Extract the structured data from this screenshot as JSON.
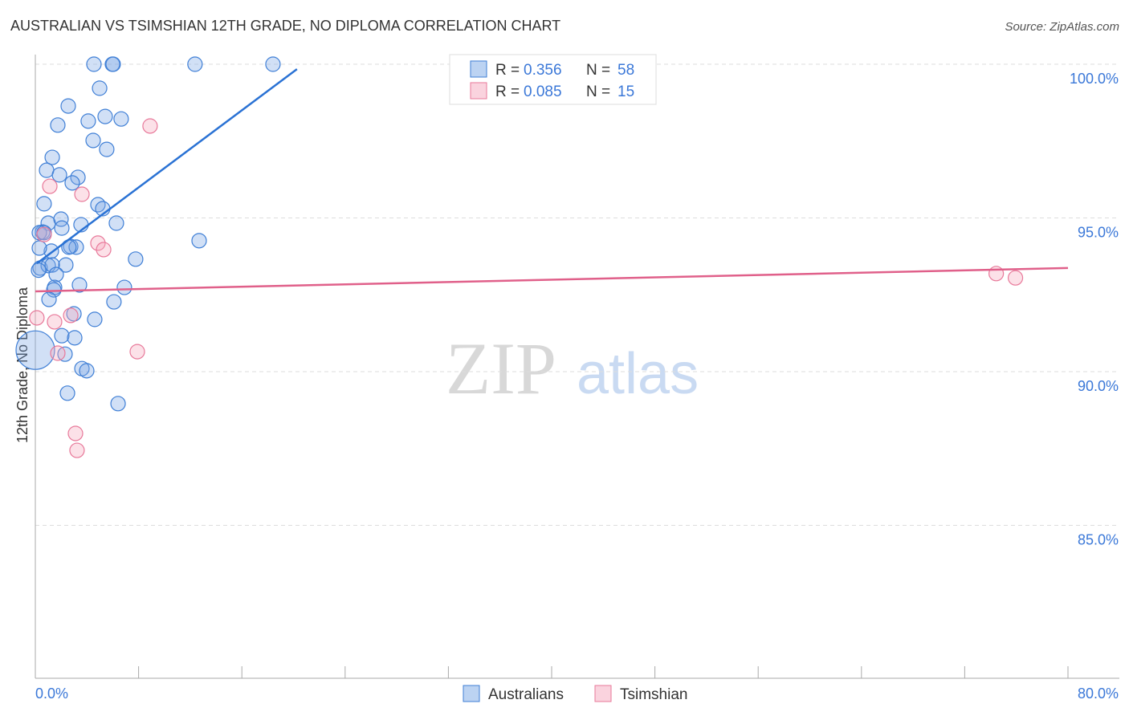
{
  "chart_data": {
    "type": "scatter",
    "title": "AUSTRALIAN VS TSIMSHIAN 12TH GRADE, NO DIPLOMA CORRELATION CHART",
    "source": "Source: ZipAtlas.com",
    "xlabel": "",
    "ylabel": "12th Grade, No Diploma",
    "xlim": [
      0,
      80
    ],
    "ylim": [
      80,
      100.9
    ],
    "x_tick_labels": [
      "0.0%",
      "80.0%"
    ],
    "y_ticks": [
      100,
      95,
      90,
      85
    ],
    "y_tick_labels": [
      "100.0%",
      "95.0%",
      "90.0%",
      "85.0%"
    ],
    "watermark": "ZIPatlas",
    "legend": {
      "placement": "top-center",
      "entries": [
        {
          "r_label": "R =",
          "r": "0.356",
          "n_label": "N =",
          "n": "58"
        },
        {
          "r_label": "R =",
          "r": "0.085",
          "n_label": "N =",
          "n": "15"
        }
      ]
    },
    "series": [
      {
        "name": "Australians",
        "color": "#7aa7e6",
        "stroke": "#3f7fd6",
        "trend": {
          "x": [
            0.12,
            20.27
          ],
          "y": [
            93.52,
            99.84
          ]
        },
        "trend_color": "#2a72d4",
        "points": [
          [
            4.54,
            100
          ],
          [
            5.97,
            100
          ],
          [
            6.03,
            100
          ],
          [
            12.37,
            100
          ],
          [
            18.41,
            100
          ],
          [
            4.98,
            99.22
          ],
          [
            2.55,
            98.64
          ],
          [
            5.41,
            98.3
          ],
          [
            1.74,
            98.02
          ],
          [
            4.1,
            98.15
          ],
          [
            6.65,
            98.22
          ],
          [
            4.48,
            97.52
          ],
          [
            5.53,
            97.23
          ],
          [
            1.31,
            96.97
          ],
          [
            0.87,
            96.55
          ],
          [
            1.87,
            96.4
          ],
          [
            3.3,
            96.32
          ],
          [
            2.86,
            96.14
          ],
          [
            0.68,
            95.46
          ],
          [
            4.85,
            95.43
          ],
          [
            5.22,
            95.3
          ],
          [
            1.0,
            94.83
          ],
          [
            1.99,
            94.96
          ],
          [
            6.28,
            94.83
          ],
          [
            3.54,
            94.78
          ],
          [
            2.05,
            94.67
          ],
          [
            0.56,
            94.54
          ],
          [
            0.31,
            94.52
          ],
          [
            0.68,
            94.52
          ],
          [
            12.69,
            94.26
          ],
          [
            2.74,
            94.07
          ],
          [
            3.17,
            94.05
          ],
          [
            1.24,
            93.92
          ],
          [
            0.31,
            94.02
          ],
          [
            7.77,
            93.66
          ],
          [
            0.37,
            93.37
          ],
          [
            1.0,
            93.45
          ],
          [
            2.36,
            93.47
          ],
          [
            1.31,
            93.47
          ],
          [
            1.62,
            93.16
          ],
          [
            3.42,
            92.82
          ],
          [
            1.49,
            92.74
          ],
          [
            1.43,
            92.66
          ],
          [
            6.9,
            92.74
          ],
          [
            1.06,
            92.35
          ],
          [
            6.09,
            92.27
          ],
          [
            2.99,
            91.88
          ],
          [
            4.6,
            91.7
          ],
          [
            2.05,
            91.17
          ],
          [
            3.05,
            91.1
          ],
          [
            2.3,
            90.57
          ],
          [
            0,
            90.7,
            "large"
          ],
          [
            3.61,
            90.1
          ],
          [
            3.98,
            90.03
          ],
          [
            2.49,
            89.3
          ],
          [
            6.41,
            88.96
          ],
          [
            0.25,
            93.3
          ],
          [
            2.6,
            94.05
          ]
        ]
      },
      {
        "name": "Tsimshian",
        "color": "#f5a8be",
        "stroke": "#e8799a",
        "trend": {
          "x": [
            0,
            80
          ],
          "y": [
            92.61,
            93.37
          ]
        },
        "trend_color": "#e0608a",
        "points": [
          [
            8.89,
            97.99
          ],
          [
            1.12,
            96.03
          ],
          [
            3.61,
            95.77
          ],
          [
            0.68,
            94.46
          ],
          [
            4.85,
            94.18
          ],
          [
            5.29,
            93.97
          ],
          [
            0.12,
            91.75
          ],
          [
            1.49,
            91.62
          ],
          [
            2.74,
            91.83
          ],
          [
            1.74,
            90.6
          ],
          [
            7.9,
            90.65
          ],
          [
            3.11,
            87.99
          ],
          [
            3.23,
            87.44
          ],
          [
            74.44,
            93.19
          ],
          [
            75.93,
            93.05
          ]
        ]
      }
    ]
  }
}
